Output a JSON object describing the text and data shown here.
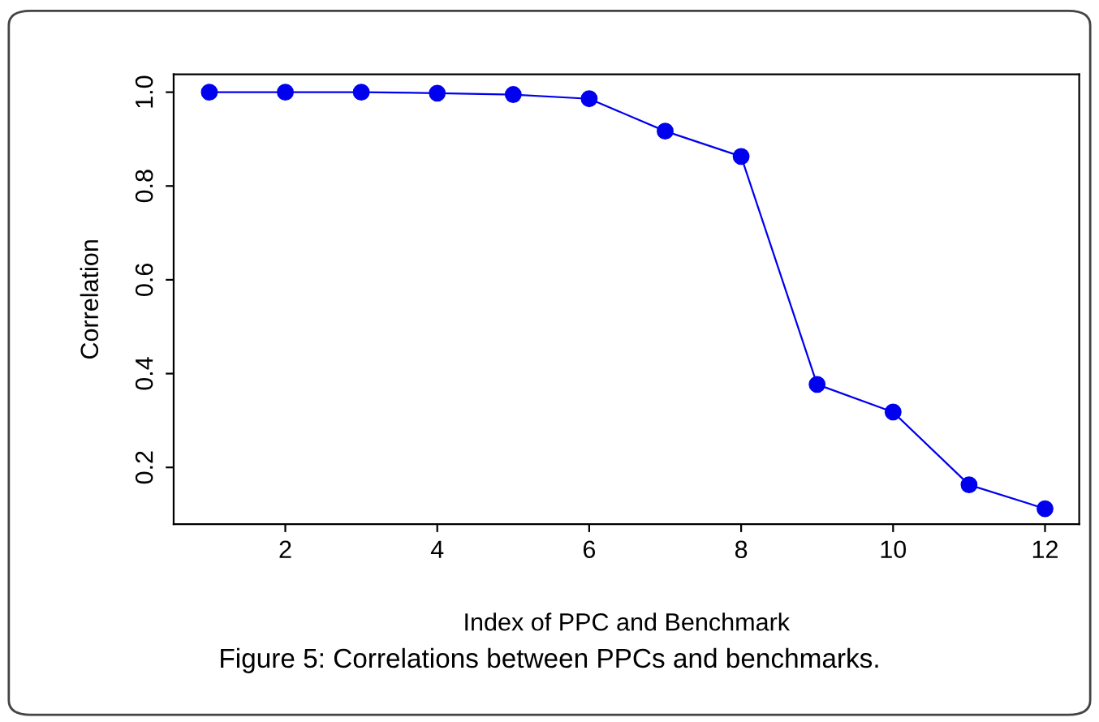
{
  "chart_data": {
    "type": "line",
    "xlabel": "Index of PPC and Benchmark",
    "ylabel": "Correlation",
    "x": [
      1,
      2,
      3,
      4,
      5,
      6,
      7,
      8,
      9,
      10,
      11,
      12
    ],
    "series": [
      {
        "color": "#0000ee",
        "values": [
          1.0,
          1.0,
          1.0,
          0.998,
          0.995,
          0.986,
          0.917,
          0.863,
          0.377,
          0.318,
          0.163,
          0.112
        ]
      }
    ],
    "xlim": [
      0.53,
      12.45
    ],
    "ylim": [
      0.079,
      1.038
    ],
    "xticks": [
      2,
      4,
      6,
      8,
      10,
      12
    ],
    "yticks": [
      0.2,
      0.4,
      0.6,
      0.8,
      {
        "value": 1,
        "label": "1.0"
      }
    ],
    "marker": "circle",
    "line_style": "solid",
    "grid": false,
    "legend": false,
    "annotations": [
      "Figure 5: Correlations between PPCs and benchmarks."
    ]
  }
}
